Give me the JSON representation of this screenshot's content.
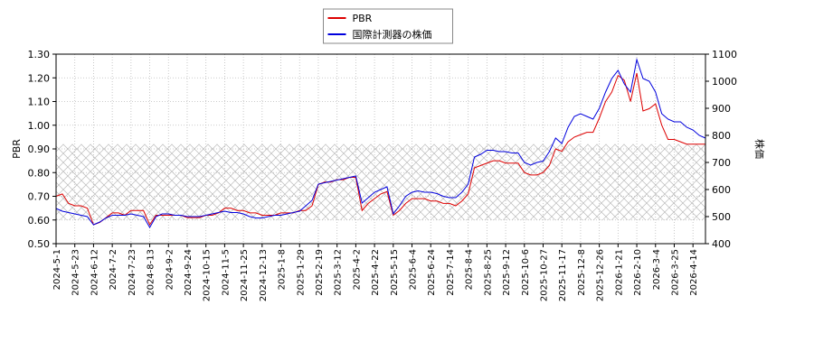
{
  "chart_data": {
    "type": "line",
    "categories": [
      "2024-5-1",
      null,
      null,
      "2024-5-23",
      null,
      null,
      "2024-6-12",
      null,
      null,
      "2024-7-2",
      null,
      null,
      "2024-7-23",
      null,
      null,
      "2024-8-13",
      null,
      null,
      "2024-9-2",
      null,
      null,
      "2024-9-24",
      null,
      null,
      "2024-10-15",
      null,
      null,
      "2024-11-5",
      null,
      null,
      "2024-11-25",
      null,
      null,
      "2024-12-13",
      null,
      null,
      "2025-1-8",
      null,
      null,
      "2025-1-29",
      null,
      null,
      "2025-2-19",
      null,
      null,
      "2025-3-12",
      null,
      null,
      "2025-4-2",
      null,
      null,
      "2025-4-22",
      null,
      null,
      "2025-5-15",
      null,
      null,
      "2025-6-4",
      null,
      null,
      "2025-6-24",
      null,
      null,
      "2025-7-14",
      null,
      null,
      "2025-8-4",
      null,
      null,
      "2025-8-25",
      null,
      null,
      "2025-9-12",
      null,
      null,
      "2025-10-6",
      null,
      null,
      "2025-10-27",
      null,
      null,
      "2025-11-17",
      null,
      null,
      "2025-12-8",
      null,
      null,
      "2025-12-26",
      null,
      null,
      "2026-1-21",
      null,
      null,
      "2026-2-10",
      null,
      null,
      "2026-3-4",
      null,
      null,
      "2026-3-25",
      null,
      null,
      "2026-4-14",
      null,
      null
    ],
    "series": [
      {
        "name": "PBR",
        "color": "#dd0000",
        "axis": "y",
        "values": [
          0.7,
          0.71,
          0.67,
          0.66,
          0.66,
          0.65,
          0.58,
          0.59,
          0.61,
          0.63,
          0.63,
          0.62,
          0.64,
          0.64,
          0.64,
          0.58,
          0.62,
          0.62,
          0.62,
          0.62,
          0.62,
          0.61,
          0.61,
          0.61,
          0.62,
          0.62,
          0.63,
          0.65,
          0.65,
          0.64,
          0.64,
          0.63,
          0.63,
          0.62,
          0.62,
          0.62,
          0.63,
          0.63,
          0.63,
          0.64,
          0.64,
          0.66,
          0.75,
          0.76,
          0.76,
          0.77,
          0.77,
          0.78,
          0.78,
          0.64,
          0.67,
          0.69,
          0.71,
          0.72,
          0.62,
          0.64,
          0.67,
          0.69,
          0.69,
          0.69,
          0.68,
          0.68,
          0.67,
          0.67,
          0.66,
          0.68,
          0.71,
          0.82,
          0.83,
          0.84,
          0.85,
          0.85,
          0.84,
          0.84,
          0.84,
          0.8,
          0.79,
          0.79,
          0.8,
          0.83,
          0.9,
          0.89,
          0.93,
          0.95,
          0.96,
          0.97,
          0.97,
          1.03,
          1.1,
          1.14,
          1.21,
          1.19,
          1.1,
          1.22,
          1.06,
          1.07,
          1.09,
          1.0,
          0.94,
          0.94,
          0.93,
          0.92,
          0.92,
          0.92,
          0.92
        ]
      },
      {
        "name": "国際計測器の株価",
        "color": "#0000dd",
        "axis": "y2",
        "values": [
          530,
          520,
          515,
          510,
          505,
          500,
          470,
          480,
          495,
          505,
          505,
          505,
          510,
          505,
          500,
          460,
          500,
          510,
          510,
          505,
          505,
          500,
          500,
          500,
          505,
          510,
          515,
          520,
          515,
          515,
          510,
          500,
          495,
          495,
          500,
          505,
          505,
          510,
          515,
          520,
          540,
          560,
          620,
          625,
          630,
          635,
          640,
          645,
          650,
          550,
          570,
          590,
          600,
          610,
          510,
          540,
          575,
          590,
          595,
          590,
          590,
          585,
          575,
          570,
          570,
          590,
          620,
          720,
          730,
          745,
          745,
          740,
          740,
          735,
          735,
          700,
          690,
          700,
          705,
          740,
          790,
          770,
          830,
          870,
          880,
          870,
          860,
          900,
          960,
          1010,
          1040,
          990,
          960,
          1080,
          1010,
          1000,
          960,
          880,
          860,
          850,
          850,
          830,
          820,
          800,
          790
        ]
      }
    ],
    "ylabel": "PBR",
    "y2label": "株価",
    "ylim": [
      0.5,
      1.3
    ],
    "yticks": [
      {
        "value": 0.5,
        "label": "0.50"
      },
      {
        "value": 0.6,
        "label": "0.60"
      },
      {
        "value": 0.7,
        "label": "0.70"
      },
      {
        "value": 0.8,
        "label": "0.80"
      },
      {
        "value": 0.9,
        "label": "0.90"
      },
      {
        "value": 1.0,
        "label": "1.00"
      },
      {
        "value": 1.1,
        "label": "1.10"
      },
      {
        "value": 1.2,
        "label": "1.20"
      },
      {
        "value": 1.3,
        "label": "1.30"
      }
    ],
    "y2lim": [
      400,
      1100
    ],
    "y2ticks": [
      400,
      500,
      600,
      700,
      800,
      900,
      1000,
      1100
    ],
    "shaded_range": [
      0.6,
      0.92
    ],
    "grid": true,
    "legend": "upper center"
  }
}
